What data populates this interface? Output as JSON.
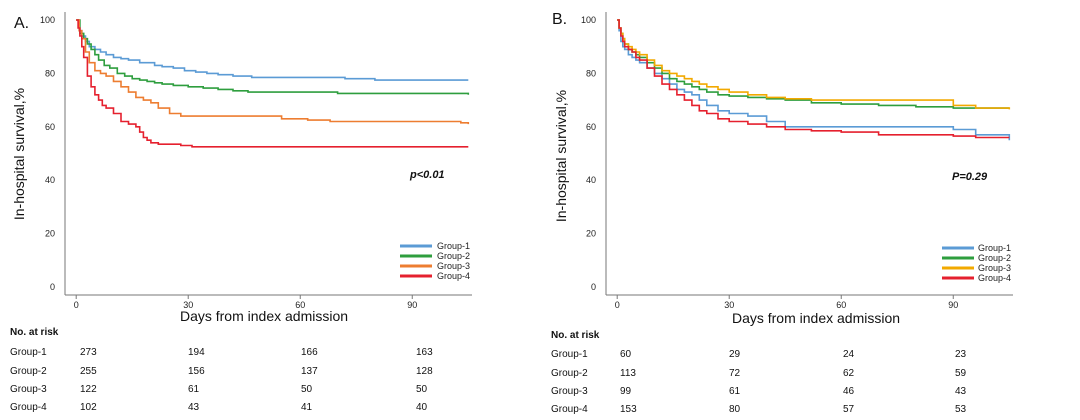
{
  "chart_data": [
    {
      "panel_label": "A.",
      "type": "line",
      "title": "",
      "xlabel": "Days from index admission",
      "ylabel": "In-hospital survival,%",
      "x_ticks": [
        0,
        30,
        60,
        90
      ],
      "y_ticks": [
        0,
        20,
        40,
        60,
        80,
        100
      ],
      "xlim": [
        -3,
        106
      ],
      "ylim": [
        -3,
        103
      ],
      "p_value": "p<0.01",
      "legend_position": "bottom-right",
      "series": [
        {
          "name": "Group-1",
          "color": "#5B9BD5",
          "x": [
            0,
            0.8,
            1.5,
            2.5,
            3.5,
            5,
            6.5,
            8,
            10,
            12,
            14,
            17,
            19,
            21,
            23,
            26,
            29,
            32,
            35,
            38,
            42,
            47,
            52,
            58,
            65,
            72,
            80,
            88,
            95,
            105
          ],
          "y": [
            100,
            96,
            94,
            92,
            90,
            89,
            88,
            87,
            86,
            85.5,
            85,
            84,
            84,
            83,
            82.5,
            82,
            81,
            80.5,
            80,
            79.5,
            79,
            78.5,
            78.5,
            78.5,
            78.5,
            78,
            77.5,
            77.5,
            77.5,
            77.5
          ]
        },
        {
          "name": "Group-2",
          "color": "#2E9E3E",
          "x": [
            0,
            1,
            2,
            3,
            4,
            5,
            6,
            7.5,
            9,
            11,
            13,
            15,
            17,
            19,
            21,
            23,
            26,
            30,
            34,
            38,
            42,
            46,
            50,
            55,
            62,
            70,
            80,
            92,
            100,
            105
          ],
          "y": [
            100,
            95,
            93,
            91,
            89,
            87,
            85,
            83,
            82,
            80,
            79,
            78,
            77.5,
            77,
            76.5,
            76,
            75.5,
            75,
            74.5,
            74,
            73.5,
            73,
            73,
            73,
            73,
            72.5,
            72.5,
            72.5,
            72.5,
            72
          ]
        },
        {
          "name": "Group-3",
          "color": "#ED7D31",
          "x": [
            0,
            0.8,
            1.5,
            2.5,
            3.5,
            5,
            6.5,
            8,
            10,
            12,
            14,
            16,
            18,
            20,
            22,
            25,
            28,
            32,
            36,
            42,
            48,
            55,
            62,
            68,
            75,
            85,
            95,
            100,
            103,
            105
          ],
          "y": [
            100,
            96,
            93,
            88,
            84,
            81,
            80,
            79,
            77,
            75,
            73,
            71,
            70,
            69,
            67,
            65,
            64,
            64,
            64,
            64,
            64,
            63,
            62.5,
            62,
            62,
            62,
            62,
            62,
            61.5,
            61
          ]
        },
        {
          "name": "Group-4",
          "color": "#E5202E",
          "x": [
            0,
            0.5,
            1,
            1.5,
            2,
            3,
            4,
            5,
            6,
            7,
            8,
            10,
            12,
            14,
            16,
            17,
            18,
            19,
            20,
            22,
            25,
            28,
            31,
            35,
            40,
            50,
            60,
            75,
            90,
            105
          ],
          "y": [
            100,
            97,
            94,
            90,
            86,
            79,
            75,
            72,
            70,
            68,
            67,
            65,
            62,
            61,
            60,
            58,
            56,
            55,
            54,
            53.5,
            53.5,
            53,
            52.5,
            52.5,
            52.5,
            52.5,
            52.5,
            52.5,
            52.5,
            52.5
          ]
        }
      ],
      "risk_table": {
        "title": "No. at risk",
        "rows": [
          {
            "label": "Group-1",
            "values": [
              "273",
              "194",
              "166",
              "163"
            ]
          },
          {
            "label": "Group-2",
            "values": [
              "255",
              "156",
              "137",
              "128"
            ]
          },
          {
            "label": "Group-3",
            "values": [
              "122",
              "61",
              "50",
              "50"
            ]
          },
          {
            "label": "Group-4",
            "values": [
              "102",
              "43",
              "41",
              "40"
            ]
          }
        ]
      }
    },
    {
      "panel_label": "B.",
      "type": "line",
      "title": "",
      "xlabel": "Days from index admission",
      "ylabel": "In-hospital survival,%",
      "x_ticks": [
        0,
        30,
        60,
        90
      ],
      "y_ticks": [
        0,
        20,
        40,
        60,
        80,
        100
      ],
      "xlim": [
        -3,
        106
      ],
      "ylim": [
        -3,
        103
      ],
      "p_value": "P=0.29",
      "legend_position": "bottom-right",
      "series": [
        {
          "name": "Group-1",
          "color": "#5B9BD5",
          "x": [
            0,
            0.5,
            1,
            1.5,
            2,
            3,
            4,
            5,
            6,
            8,
            10,
            12,
            14,
            16,
            18,
            20,
            22,
            24,
            27,
            30,
            35,
            40,
            45,
            52,
            60,
            75,
            85,
            90,
            96,
            105
          ],
          "y": [
            100,
            96,
            92,
            90,
            89,
            87,
            86,
            85,
            84,
            82,
            80,
            78,
            76,
            74,
            73,
            72,
            70,
            68,
            66,
            65,
            64,
            62,
            60,
            60,
            60,
            60,
            60,
            59,
            57,
            55
          ]
        },
        {
          "name": "Group-2",
          "color": "#2E9E3E",
          "x": [
            0,
            0.5,
            1,
            1.5,
            2,
            3,
            4,
            5,
            6,
            8,
            10,
            12,
            14,
            16,
            18,
            20,
            22,
            24,
            27,
            30,
            35,
            40,
            45,
            52,
            60,
            70,
            80,
            90,
            96,
            105
          ],
          "y": [
            100,
            97,
            95,
            93,
            91,
            89,
            88,
            87,
            86,
            84,
            82,
            80,
            78,
            77,
            76,
            75,
            74,
            73,
            72,
            71.5,
            71,
            70.5,
            70,
            69,
            68.5,
            68,
            67.5,
            67,
            67,
            67
          ]
        },
        {
          "name": "Group-3",
          "color": "#F2A900",
          "x": [
            0,
            0.5,
            1,
            1.5,
            2,
            3,
            4,
            5,
            6,
            8,
            10,
            12,
            14,
            16,
            18,
            20,
            22,
            24,
            27,
            30,
            35,
            40,
            45,
            52,
            60,
            70,
            80,
            90,
            96,
            105
          ],
          "y": [
            100,
            97,
            95,
            93,
            91,
            90,
            89,
            88,
            87,
            85,
            83,
            81,
            80,
            79,
            78,
            77,
            76,
            75,
            74,
            73,
            72,
            71,
            70.5,
            70,
            70,
            70,
            70,
            68,
            67,
            66.5
          ]
        },
        {
          "name": "Group-4",
          "color": "#E5202E",
          "x": [
            0,
            0.5,
            1,
            1.5,
            2,
            3,
            4,
            5,
            6,
            8,
            10,
            12,
            14,
            16,
            18,
            20,
            22,
            24,
            27,
            30,
            35,
            40,
            45,
            52,
            60,
            70,
            80,
            90,
            96,
            105
          ],
          "y": [
            100,
            97,
            94,
            92,
            90,
            89,
            88,
            86,
            85,
            82,
            79,
            76,
            74,
            72,
            70,
            68,
            66,
            65,
            63,
            62,
            61,
            60,
            59,
            58.5,
            58,
            57,
            57,
            56.5,
            56,
            56
          ]
        }
      ],
      "risk_table": {
        "title": "No. at risk",
        "rows": [
          {
            "label": "Group-1",
            "values": [
              "60",
              "29",
              "24",
              "23"
            ]
          },
          {
            "label": "Group-2",
            "values": [
              "113",
              "72",
              "62",
              "59"
            ]
          },
          {
            "label": "Group-3",
            "values": [
              "99",
              "61",
              "46",
              "43"
            ]
          },
          {
            "label": "Group-4",
            "values": [
              "153",
              "80",
              "57",
              "53"
            ]
          }
        ]
      }
    }
  ]
}
